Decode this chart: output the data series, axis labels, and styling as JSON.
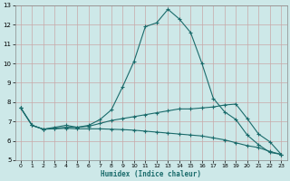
{
  "xlabel": "Humidex (Indice chaleur)",
  "bg_color": "#cde8e8",
  "grid_color": "#b8d0d0",
  "line_color": "#1a6b6b",
  "xlim": [
    -0.5,
    23.5
  ],
  "ylim": [
    5,
    13
  ],
  "xticks": [
    0,
    1,
    2,
    3,
    4,
    5,
    6,
    7,
    8,
    9,
    10,
    11,
    12,
    13,
    14,
    15,
    16,
    17,
    18,
    19,
    20,
    21,
    22,
    23
  ],
  "yticks": [
    5,
    6,
    7,
    8,
    9,
    10,
    11,
    12,
    13
  ],
  "line1_x": [
    0,
    1,
    2,
    3,
    4,
    5,
    6,
    7,
    8,
    9,
    10,
    11,
    12,
    13,
    14,
    15,
    16,
    17,
    18,
    19,
    20,
    21,
    22,
    23
  ],
  "line1_y": [
    7.7,
    6.8,
    6.6,
    6.7,
    6.8,
    6.7,
    6.8,
    7.1,
    7.6,
    8.8,
    10.1,
    11.9,
    12.1,
    12.8,
    12.3,
    11.6,
    10.0,
    8.2,
    7.5,
    7.1,
    6.3,
    5.8,
    5.4,
    5.3
  ],
  "line2_x": [
    0,
    1,
    2,
    3,
    4,
    5,
    6,
    7,
    8,
    9,
    10,
    11,
    12,
    13,
    14,
    15,
    16,
    17,
    18,
    19,
    20,
    21,
    22,
    23
  ],
  "line2_y": [
    7.7,
    6.8,
    6.6,
    6.65,
    6.7,
    6.7,
    6.75,
    6.9,
    7.05,
    7.15,
    7.25,
    7.35,
    7.45,
    7.55,
    7.65,
    7.65,
    7.7,
    7.75,
    7.85,
    7.9,
    7.15,
    6.35,
    5.95,
    5.3
  ],
  "line3_x": [
    0,
    1,
    2,
    3,
    4,
    5,
    6,
    7,
    8,
    9,
    10,
    11,
    12,
    13,
    14,
    15,
    16,
    17,
    18,
    19,
    20,
    21,
    22,
    23
  ],
  "line3_y": [
    7.7,
    6.8,
    6.6,
    6.62,
    6.65,
    6.62,
    6.62,
    6.62,
    6.6,
    6.58,
    6.55,
    6.5,
    6.45,
    6.4,
    6.35,
    6.3,
    6.25,
    6.15,
    6.05,
    5.9,
    5.75,
    5.65,
    5.45,
    5.3
  ]
}
